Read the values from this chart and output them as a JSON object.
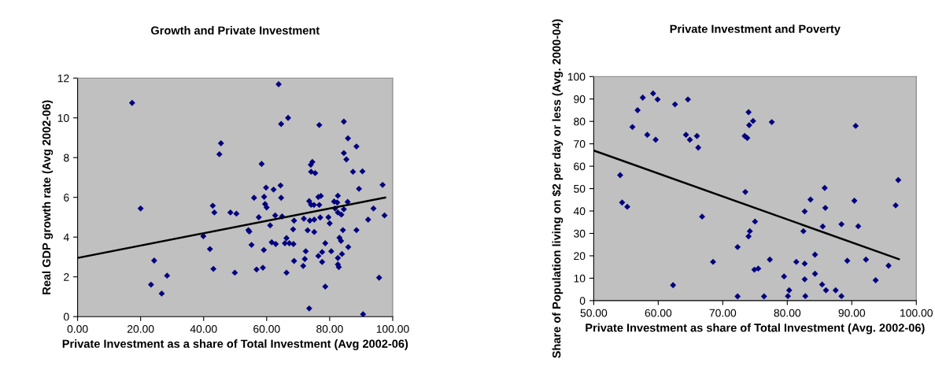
{
  "chart_data": [
    {
      "type": "scatter",
      "title": "Growth and Private Investment",
      "xlabel": "Private Investment as a share of Total Investment (Avg 2002-06)",
      "ylabel": "Real GDP growth rate (Avg 2002-06)",
      "xlim": [
        0,
        100
      ],
      "xticks": [
        {
          "value": 0,
          "label": "0.00"
        },
        {
          "value": 20,
          "label": "20.00"
        },
        {
          "value": 40,
          "label": "40.00"
        },
        {
          "value": 60,
          "label": "60.00"
        },
        {
          "value": 80,
          "label": "80.00"
        },
        {
          "value": 100,
          "label": "100.00"
        }
      ],
      "ylim": [
        0,
        12
      ],
      "yticks": [
        0,
        2,
        4,
        6,
        8,
        10,
        12
      ],
      "grid": false,
      "legend": false,
      "series": [
        {
          "marker": "diamond",
          "color": "#000080",
          "x": [
            17.3,
            20.0,
            24.3,
            23.3,
            26.7,
            28.4,
            39.9,
            42.0,
            43.1,
            42.9,
            43.4,
            63.8,
            64.6,
            66.8,
            76.7,
            84.5,
            85.8,
            84.5,
            85.3,
            87.4,
            45.5,
            45.0,
            58.4,
            74.5,
            74.0,
            74.1,
            75.4,
            59.8,
            62.2,
            64.4,
            56.0,
            59.2,
            64.6,
            59.5,
            60.0,
            48.5,
            50.4,
            57.5,
            62.7,
            64.9,
            61.1,
            54.2,
            54.5,
            55.2,
            59.1,
            49.9,
            56.8,
            58.8,
            61.6,
            62.9,
            66.3,
            65.8,
            67.2,
            68.5,
            68.7,
            68.4,
            68.7,
            66.3,
            71.8,
            72.4,
            72.1,
            71.6,
            73.5,
            73.0,
            73.7,
            75.1,
            75.1,
            73.5,
            74.1,
            75.0,
            76.7,
            76.4,
            77.2,
            77.0,
            79.6,
            80.0,
            78.6,
            77.6,
            76.4,
            77.6,
            78.6,
            80.5,
            82.6,
            82.6,
            82.9,
            83.9,
            85.9,
            83.1,
            83.6,
            84.2,
            82.6,
            81.4,
            82.4,
            85.7,
            84.5,
            83.7,
            82.6,
            81.7,
            88.5,
            90.4,
            96.8,
            89.3,
            93.9,
            97.4,
            92.2,
            88.5,
            95.7,
            90.6
          ],
          "values": [
            10.75,
            5.44,
            2.82,
            1.61,
            1.16,
            2.06,
            4.05,
            3.4,
            2.4,
            5.58,
            5.24,
            11.69,
            9.69,
            10.0,
            9.64,
            9.81,
            8.97,
            8.23,
            7.91,
            7.29,
            8.72,
            8.17,
            7.68,
            7.78,
            7.64,
            7.29,
            7.22,
            6.49,
            6.39,
            6.6,
            5.98,
            6.03,
            5.98,
            5.66,
            5.49,
            5.24,
            5.18,
            5.0,
            5.09,
            5.04,
            4.59,
            4.35,
            4.28,
            3.61,
            3.35,
            2.21,
            2.37,
            2.46,
            3.74,
            3.65,
            3.95,
            3.69,
            3.69,
            3.65,
            4.83,
            4.39,
            2.8,
            2.21,
            4.93,
            3.29,
            2.9,
            2.55,
            0.41,
            4.34,
            4.83,
            4.88,
            4.26,
            5.81,
            5.63,
            5.62,
            5.62,
            6.02,
            6.07,
            4.99,
            5.0,
            4.69,
            3.69,
            3.25,
            3.05,
            2.75,
            1.51,
            3.29,
            2.95,
            2.62,
            2.49,
            3.15,
            3.5,
            3.97,
            3.81,
            4.35,
            6.08,
            5.79,
            5.74,
            5.77,
            5.4,
            5.13,
            5.24,
            5.44,
            8.56,
            7.31,
            6.63,
            6.43,
            5.44,
            5.09,
            4.88,
            4.35,
            1.96,
            0.12
          ]
        },
        {
          "type": "line",
          "marker": "none",
          "line_style": "solid",
          "color": "#000000",
          "x": [
            0,
            97.6
          ],
          "values": [
            2.95,
            5.99
          ]
        }
      ]
    },
    {
      "type": "scatter",
      "title": "Private Investment and Poverty",
      "xlabel": "Private Investment as share of Total Investment (Avg. 2002-06)",
      "ylabel": "Share of Population living on $2 per day or less (Avg. 2000-04)",
      "xlim": [
        50,
        100
      ],
      "xticks": [
        {
          "value": 50,
          "label": "50.00"
        },
        {
          "value": 60,
          "label": "60.00"
        },
        {
          "value": 70,
          "label": "70.00"
        },
        {
          "value": 80,
          "label": "80.00"
        },
        {
          "value": 90,
          "label": "90.00"
        },
        {
          "value": 100,
          "label": "100.00"
        }
      ],
      "ylim": [
        0,
        100
      ],
      "yticks": [
        0,
        10,
        20,
        30,
        40,
        50,
        60,
        70,
        80,
        90,
        100
      ],
      "grid": false,
      "legend": false,
      "series": [
        {
          "marker": "diamond",
          "color": "#000080",
          "x": [
            59.2,
            57.6,
            59.9,
            64.6,
            62.6,
            56.8,
            56.0,
            58.3,
            59.6,
            64.3,
            64.9,
            66.0,
            66.2,
            74.0,
            74.7,
            74.1,
            73.4,
            73.8,
            54.1,
            54.4,
            55.2,
            73.5,
            66.8,
            75.0,
            74.2,
            74.0,
            72.3,
            68.5,
            74.9,
            75.5,
            62.3,
            72.3,
            76.4,
            77.6,
            90.6,
            97.2,
            96.8,
            85.8,
            83.6,
            85.9,
            90.4,
            82.7,
            82.5,
            85.5,
            88.4,
            91.0,
            77.3,
            81.4,
            82.7,
            84.3,
            89.3,
            92.2,
            95.7,
            79.5,
            82.7,
            84.3,
            93.7,
            85.4,
            86.0,
            87.5,
            80.3,
            80.1,
            82.8,
            88.4
          ],
          "values": [
            92.5,
            90.6,
            89.8,
            89.8,
            87.6,
            85.0,
            77.5,
            74.0,
            71.8,
            74.0,
            71.8,
            73.5,
            68.3,
            84.1,
            80.2,
            78.3,
            73.5,
            72.6,
            56.0,
            43.8,
            41.9,
            48.5,
            37.5,
            35.3,
            31.0,
            28.7,
            23.9,
            17.3,
            13.8,
            14.3,
            6.9,
            1.9,
            1.9,
            79.7,
            78.0,
            53.8,
            42.5,
            50.3,
            45.1,
            41.4,
            44.6,
            39.8,
            31.0,
            33.1,
            34.1,
            33.2,
            18.3,
            17.3,
            16.5,
            20.5,
            17.8,
            18.3,
            15.6,
            10.8,
            9.5,
            12.0,
            9.1,
            7.2,
            4.6,
            4.6,
            4.6,
            2.0,
            2.0,
            2.0
          ]
        },
        {
          "type": "line",
          "marker": "none",
          "line_style": "solid",
          "color": "#000000",
          "x": [
            50,
            97.3
          ],
          "values": [
            67.0,
            18.5
          ]
        }
      ]
    }
  ]
}
